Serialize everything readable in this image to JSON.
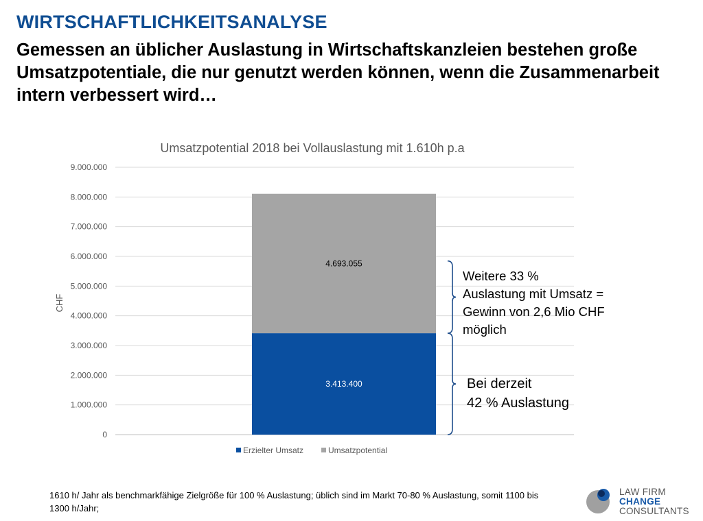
{
  "slide": {
    "heading": "WIRTSCHAFTLICHKEITSANALYSE",
    "subheading": "Gemessen an üblicher Auslastung in Wirtschaftskanzleien bestehen große Umsatzpotentiale, die nur genutzt werden können, wenn die Zusammenarbeit intern verbessert wird…"
  },
  "chart_data": {
    "type": "bar",
    "stacked": true,
    "title": "Umsatzpotential 2018 bei Vollauslastung mit 1.610h p.a",
    "xlabel": "",
    "ylabel": "CHF",
    "ylim": [
      0,
      9000000
    ],
    "yticks": [
      0,
      1000000,
      2000000,
      3000000,
      4000000,
      5000000,
      6000000,
      7000000,
      8000000,
      9000000
    ],
    "ytick_labels": [
      "0",
      "1.000.000",
      "2.000.000",
      "3.000.000",
      "4.000.000",
      "5.000.000",
      "6.000.000",
      "7.000.000",
      "8.000.000",
      "9.000.000"
    ],
    "grid": true,
    "legend_position": "bottom",
    "categories": [
      ""
    ],
    "series": [
      {
        "name": "Erzielter Umsatz",
        "values": [
          3413400
        ],
        "value_labels": [
          "3.413.400"
        ],
        "color": "#0a4fa0",
        "label_color": "#ffffff"
      },
      {
        "name": "Umsatzpotential",
        "values": [
          4693055
        ],
        "value_labels": [
          "4.693.055"
        ],
        "color": "#a5a5a5",
        "label_color": "#000000"
      }
    ]
  },
  "callouts": {
    "upper_lines": [
      "Weitere 33 %",
      "Auslastung mit Umsatz =",
      "Gewinn von 2,6 Mio CHF",
      "möglich"
    ],
    "lower_lines": [
      "Bei derzeit",
      "42 % Auslastung"
    ]
  },
  "footnote": {
    "text": "1610 h/ Jahr als benchmarkfähige Zielgröße für 100 % Auslastung; üblich sind im Markt 70-80 % Auslastung, somit 1100 bis 1300 h/Jahr;"
  },
  "logo": {
    "line1": "LAW FIRM",
    "line2": "CHANGE",
    "line3": "CONSULTANTS",
    "colors": {
      "gray": "#a0a0a0",
      "blue": "#1a5ba8",
      "navy": "#0b2a5c"
    }
  }
}
